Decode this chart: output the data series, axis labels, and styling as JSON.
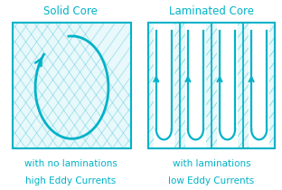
{
  "bg_color": "#ffffff",
  "teal": "#00b2c8",
  "teal_light": "#e8f8fb",
  "title1": "Solid Core",
  "title2": "Laminated Core",
  "caption1_line1": "with no laminations",
  "caption1_line2": "high Eddy Currents",
  "caption2_line1": "with laminations",
  "caption2_line2": "low Eddy Currents",
  "title_fontsize": 8.5,
  "caption_fontsize": 7.5
}
